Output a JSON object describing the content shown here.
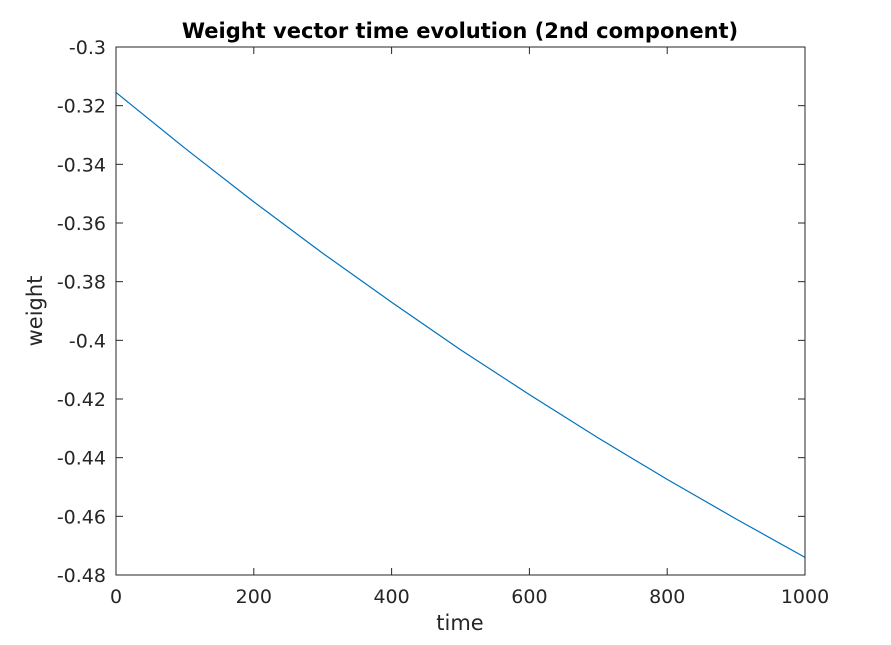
{
  "chart_data": {
    "type": "line",
    "title": "Weight vector time evolution (2nd component)",
    "xlabel": "time",
    "ylabel": "weight",
    "xlim": [
      0,
      1000
    ],
    "ylim": [
      -0.48,
      -0.3
    ],
    "xticks": [
      0,
      200,
      400,
      600,
      800,
      1000
    ],
    "yticks": [
      -0.3,
      -0.32,
      -0.34,
      -0.36,
      -0.38,
      -0.4,
      -0.42,
      -0.44,
      -0.46,
      -0.48
    ],
    "xtick_labels": [
      "0",
      "200",
      "400",
      "600",
      "800",
      "1000"
    ],
    "ytick_labels": [
      "-0.3",
      "-0.32",
      "-0.34",
      "-0.36",
      "-0.38",
      "-0.4",
      "-0.42",
      "-0.44",
      "-0.46",
      "-0.48"
    ],
    "grid": false,
    "line_color": "#0072BD",
    "series": [
      {
        "x": [
          0,
          100,
          200,
          300,
          400,
          500,
          600,
          700,
          800,
          900,
          1000
        ],
        "values": [
          -0.3155,
          -0.3345,
          -0.3528,
          -0.3703,
          -0.387,
          -0.4032,
          -0.4185,
          -0.4333,
          -0.4474,
          -0.4609,
          -0.474
        ]
      }
    ]
  }
}
